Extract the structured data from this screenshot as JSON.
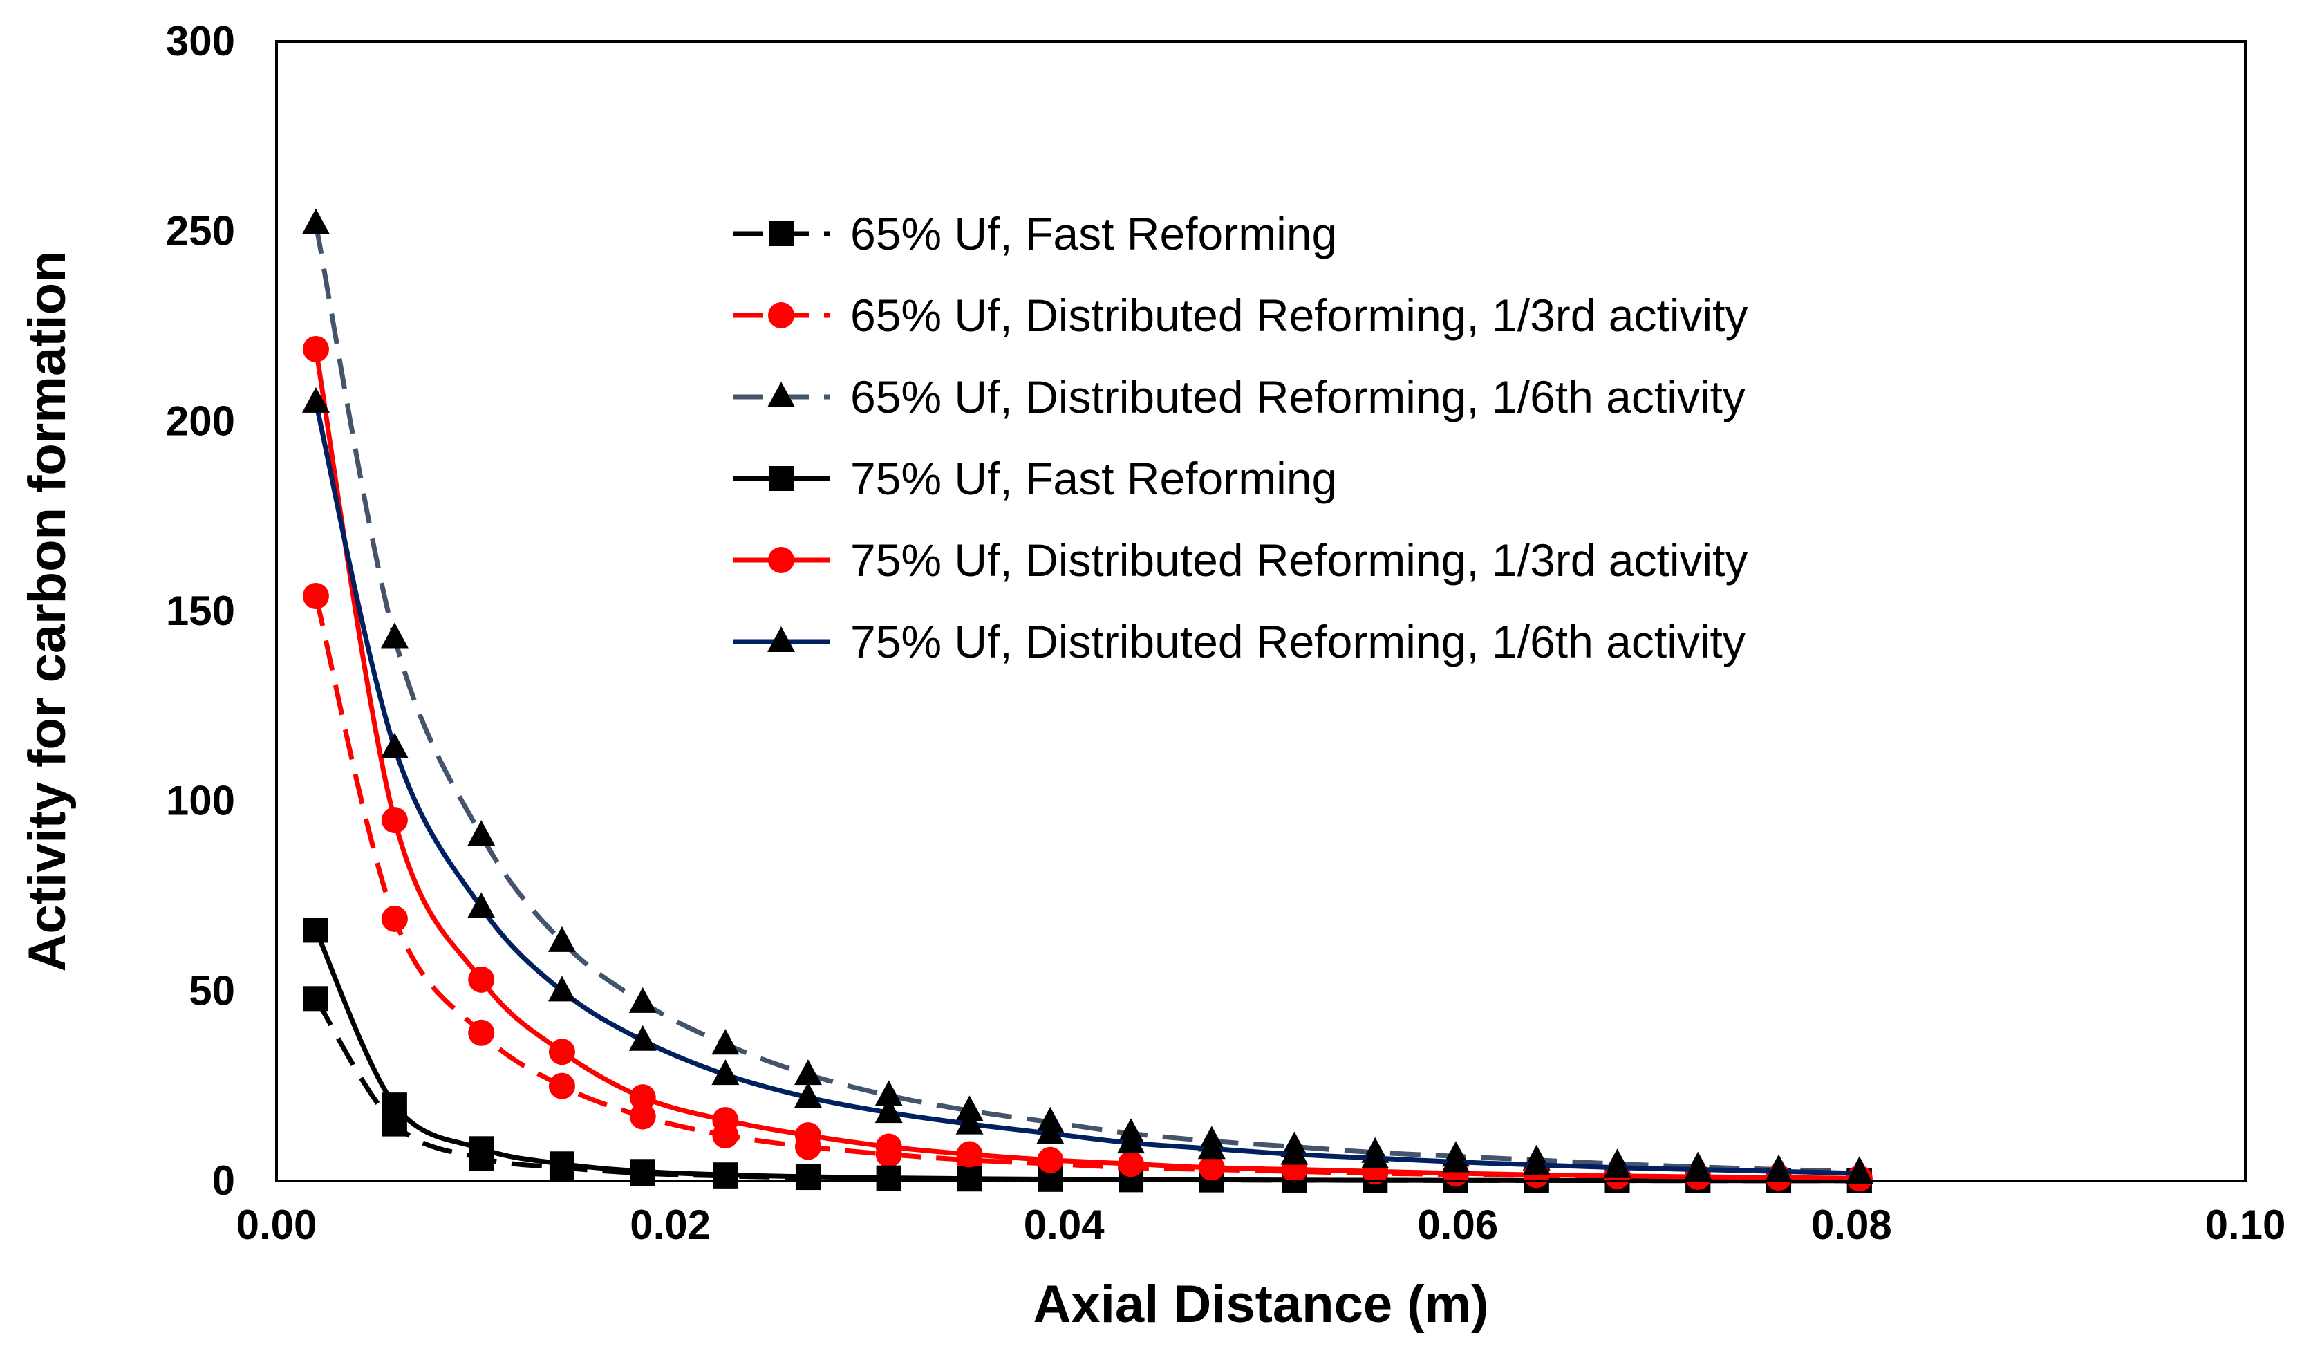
{
  "chart_data": {
    "type": "line",
    "title": "",
    "xlabel": "Axial Distance (m)",
    "ylabel": "Activity for carbon formation",
    "xlim": [
      0,
      0.1
    ],
    "ylim": [
      0,
      300
    ],
    "xticks": [
      "0.00",
      "0.02",
      "0.04",
      "0.06",
      "0.08",
      "0.10"
    ],
    "yticks": [
      "0",
      "50",
      "100",
      "150",
      "200",
      "250",
      "300"
    ],
    "legend_position": "top-right",
    "x": [
      0.002,
      0.006,
      0.0104,
      0.0145,
      0.0186,
      0.0228,
      0.027,
      0.0311,
      0.0352,
      0.0393,
      0.0434,
      0.0475,
      0.0517,
      0.0558,
      0.0599,
      0.064,
      0.0681,
      0.0722,
      0.0763,
      0.0804
    ],
    "series": [
      {
        "name": "65% Uf, Fast Reforming",
        "color": "#000000",
        "dashed": true,
        "marker": "square",
        "values": [
          48,
          15,
          6,
          3.5,
          2,
          1.3,
          0.9,
          0.7,
          0.5,
          0.4,
          0.3,
          0.25,
          0.2,
          0.15,
          0.12,
          0.1,
          0.08,
          0.06,
          0.05,
          0.04
        ]
      },
      {
        "name": "65% Uf, Distributed Reforming, 1/3rd activity",
        "color": "#ff0000",
        "dashed": true,
        "marker": "circle",
        "values": [
          154,
          69,
          39,
          25,
          17,
          12,
          9,
          7,
          5.5,
          4.5,
          3.5,
          3,
          2.5,
          2,
          1.7,
          1.4,
          1.2,
          1,
          0.8,
          0.6
        ]
      },
      {
        "name": "65% Uf, Distributed Reforming, 1/6th activity",
        "color": "#44546a",
        "dashed": true,
        "marker": "triangle",
        "values": [
          252,
          143,
          91,
          63,
          47,
          36,
          28,
          22.5,
          18.5,
          15.5,
          12.5,
          10.5,
          9,
          7.5,
          6.5,
          5.5,
          4.5,
          3.7,
          3,
          2.5
        ]
      },
      {
        "name": "75% Uf, Fast Reforming",
        "color": "#000000",
        "dashed": false,
        "marker": "square",
        "values": [
          66,
          20,
          8.5,
          4.5,
          2.5,
          1.6,
          1.1,
          0.8,
          0.6,
          0.45,
          0.35,
          0.28,
          0.22,
          0.18,
          0.14,
          0.11,
          0.09,
          0.07,
          0.05,
          0.04
        ]
      },
      {
        "name": "75% Uf, Distributed Reforming, 1/3rd activity",
        "color": "#ff0000",
        "dashed": false,
        "marker": "circle",
        "values": [
          219,
          95,
          53,
          34,
          22,
          16,
          12,
          9,
          7,
          5.5,
          4.5,
          3.5,
          3,
          2.5,
          2,
          1.6,
          1.3,
          1.1,
          0.9,
          0.7
        ]
      },
      {
        "name": "75% Uf, Distributed Reforming, 1/6th activity",
        "color": "#002060",
        "dashed": false,
        "marker": "triangle",
        "values": [
          205,
          114,
          72,
          50,
          37,
          28,
          22,
          18,
          15,
          12.5,
          10,
          8.5,
          7,
          6,
          5,
          4.2,
          3.5,
          3,
          2.5,
          2
        ]
      }
    ]
  }
}
